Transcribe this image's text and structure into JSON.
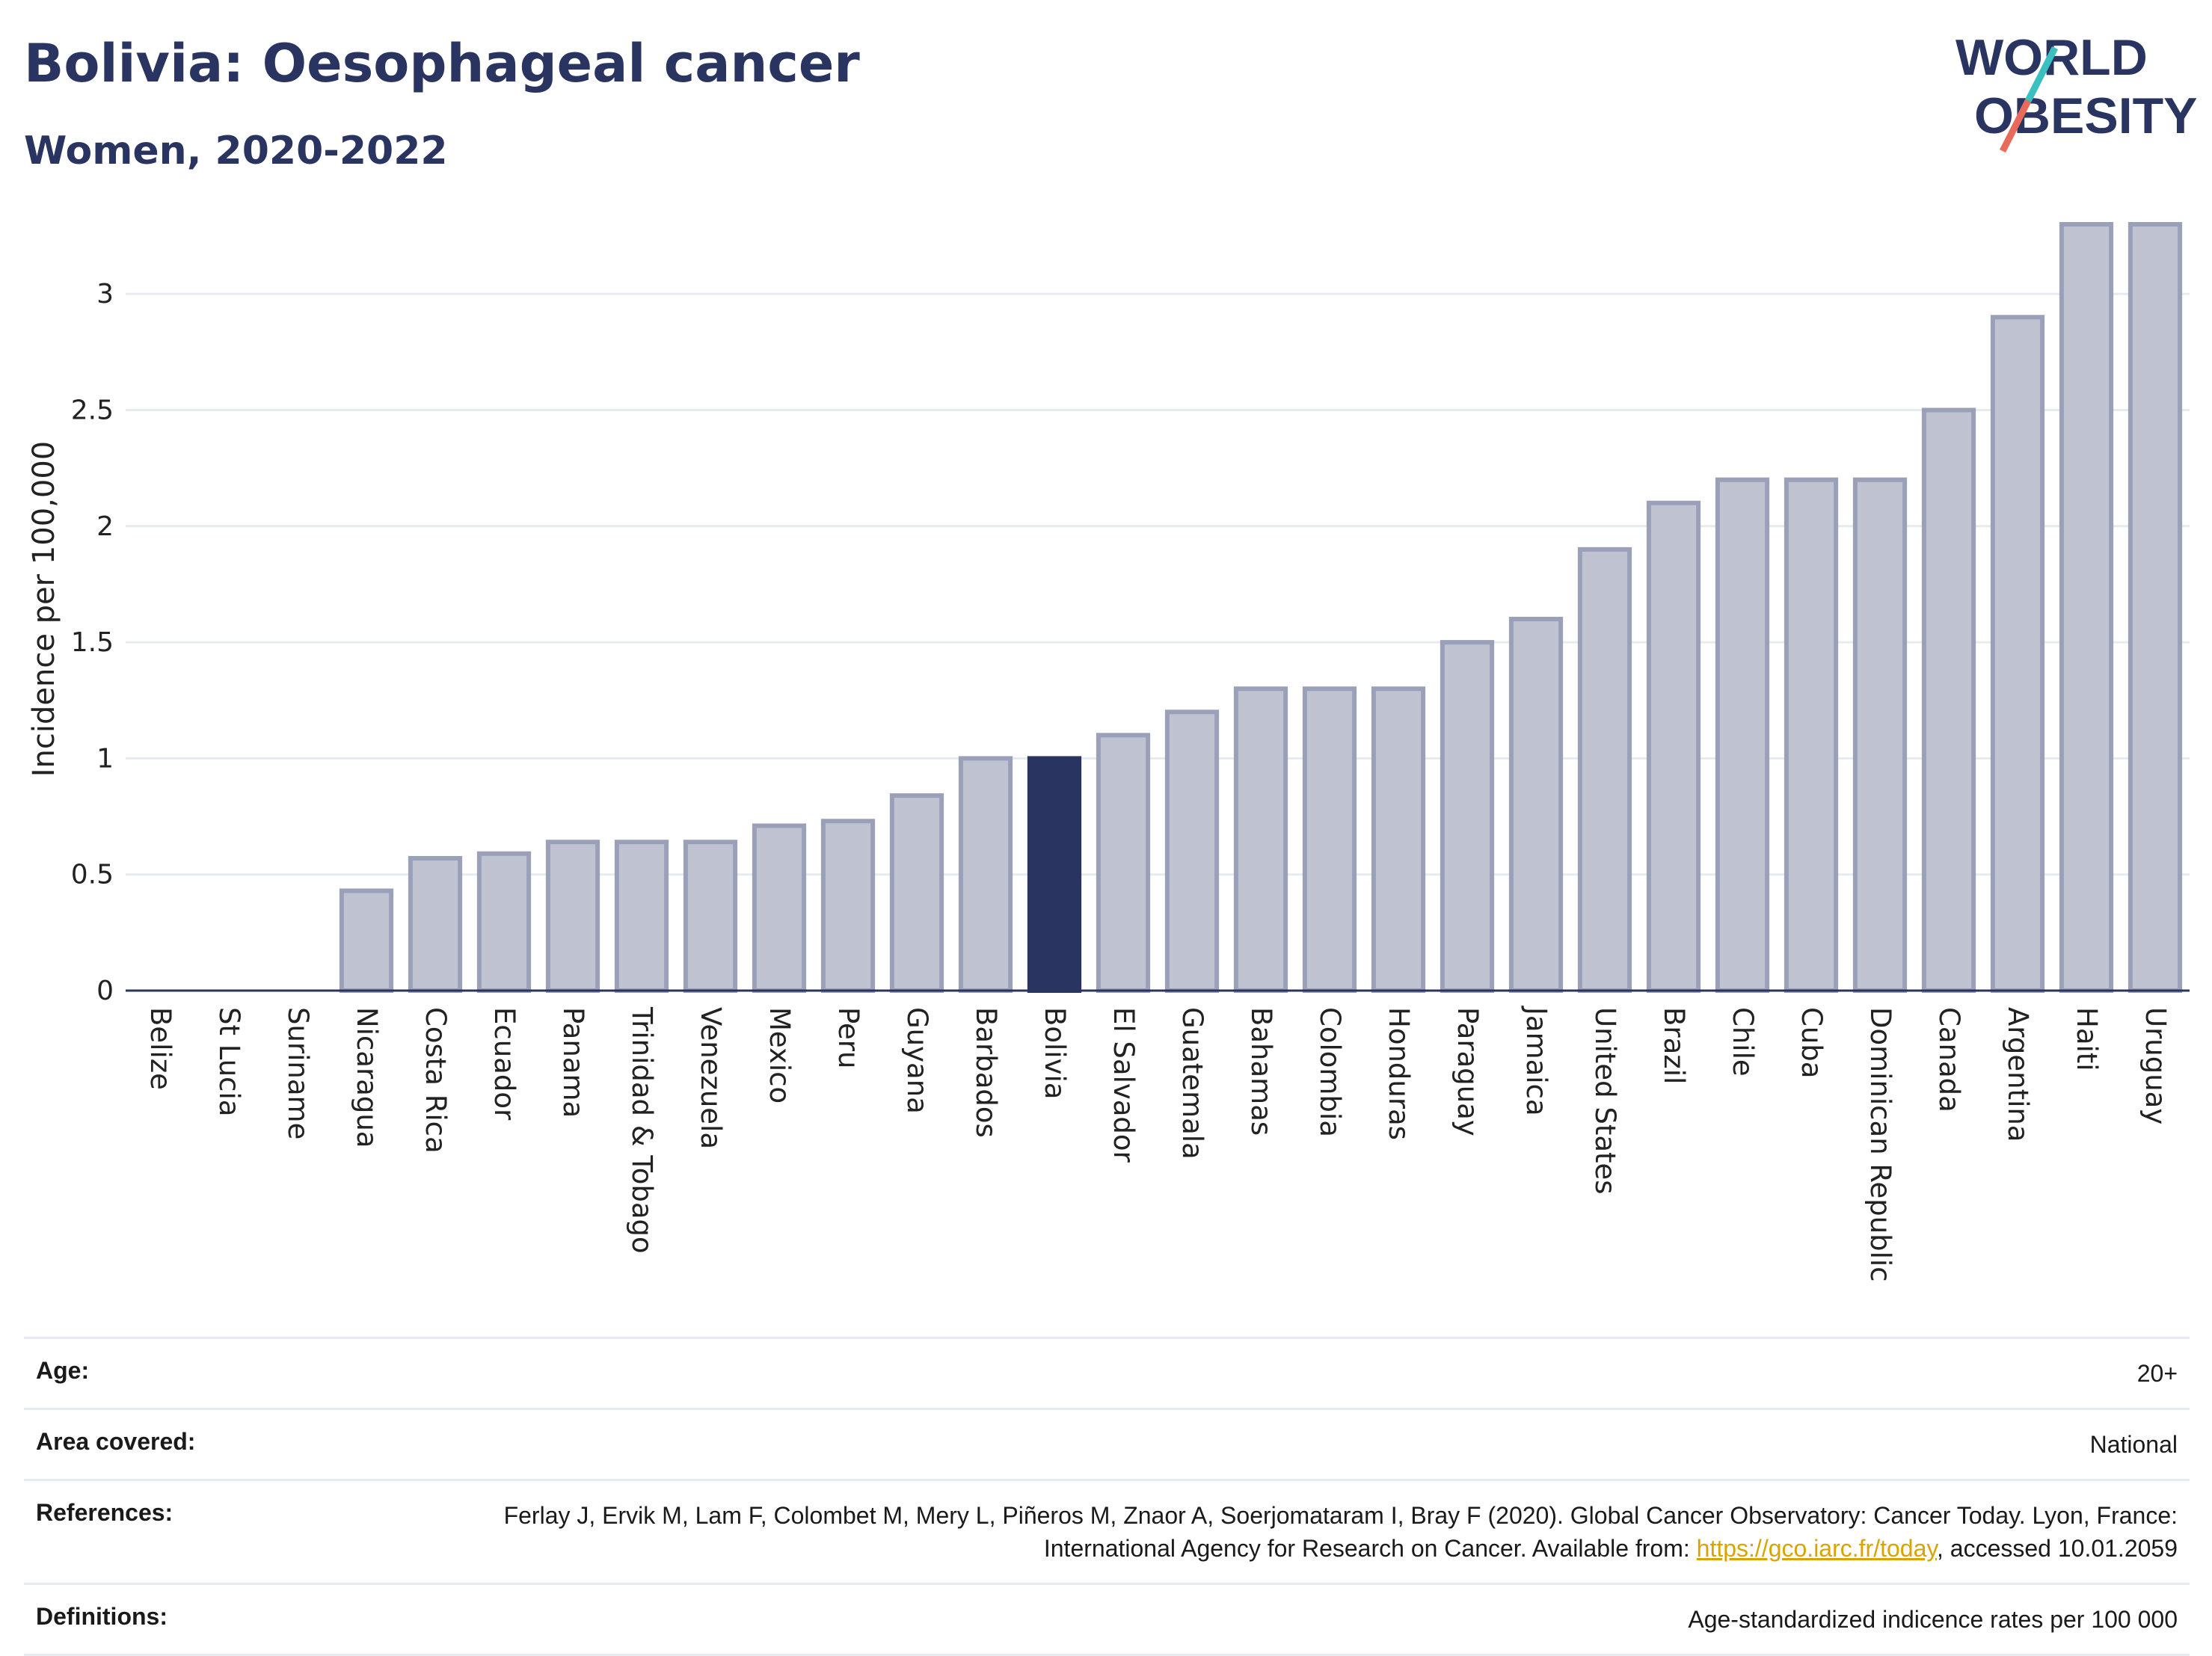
{
  "header": {
    "title": "Bolivia: Oesophageal cancer",
    "subtitle": "Women, 2020-2022",
    "logo_line1": "WORLD",
    "logo_line2": "OBESITY"
  },
  "colors": {
    "highlight": "#2a3460",
    "bar_fill": "#bfc3d1",
    "bar_stroke": "#9aa0b8",
    "grid": "#e6ebf1",
    "logo_teal": "#3bbfbf",
    "logo_coral": "#e86a5a",
    "link": "#d9a400"
  },
  "chart_data": {
    "type": "bar",
    "ylabel": "Incidence per 100,000",
    "xlabel": "",
    "ylim": [
      0,
      3.3
    ],
    "yticks": [
      0,
      0.5,
      1,
      1.5,
      2,
      2.5,
      3
    ],
    "ytick_labels": [
      "0",
      "0.5",
      "1",
      "1.5",
      "2",
      "2.5",
      "3"
    ],
    "grid": true,
    "highlight": "Bolivia",
    "categories": [
      "Belize",
      "St Lucia",
      "Suriname",
      "Nicaragua",
      "Costa Rica",
      "Ecuador",
      "Panama",
      "Trinidad & Tobago",
      "Venezuela",
      "Mexico",
      "Peru",
      "Guyana",
      "Barbados",
      "Bolivia",
      "El Salvador",
      "Guatemala",
      "Bahamas",
      "Colombia",
      "Honduras",
      "Paraguay",
      "Jamaica",
      "United States",
      "Brazil",
      "Chile",
      "Cuba",
      "Dominican Republic",
      "Canada",
      "Argentina",
      "Haiti",
      "Uruguay"
    ],
    "values": [
      0,
      0,
      0,
      0.43,
      0.57,
      0.59,
      0.64,
      0.64,
      0.64,
      0.71,
      0.73,
      0.84,
      1.0,
      1.0,
      1.1,
      1.2,
      1.3,
      1.3,
      1.3,
      1.5,
      1.6,
      1.9,
      2.1,
      2.2,
      2.2,
      2.2,
      2.5,
      2.9,
      3.3,
      3.3
    ]
  },
  "meta": {
    "age_label": "Age:",
    "age_value": "20+",
    "area_label": "Area covered:",
    "area_value": "National",
    "references_label": "References:",
    "references_text_1": "Ferlay J, Ervik M, Lam F, Colombet M, Mery L, Piñeros M, Znaor A, Soerjomataram I, Bray F (2020). Global Cancer Observatory: Cancer Today. Lyon, France: International Agency for Research on Cancer. Available from: ",
    "references_link": "https://gco.iarc.fr/today",
    "references_text_2": ", accessed 10.01.2059",
    "definitions_label": "Definitions:",
    "definitions_value": "Age-standardized indicence rates per 100 000"
  }
}
